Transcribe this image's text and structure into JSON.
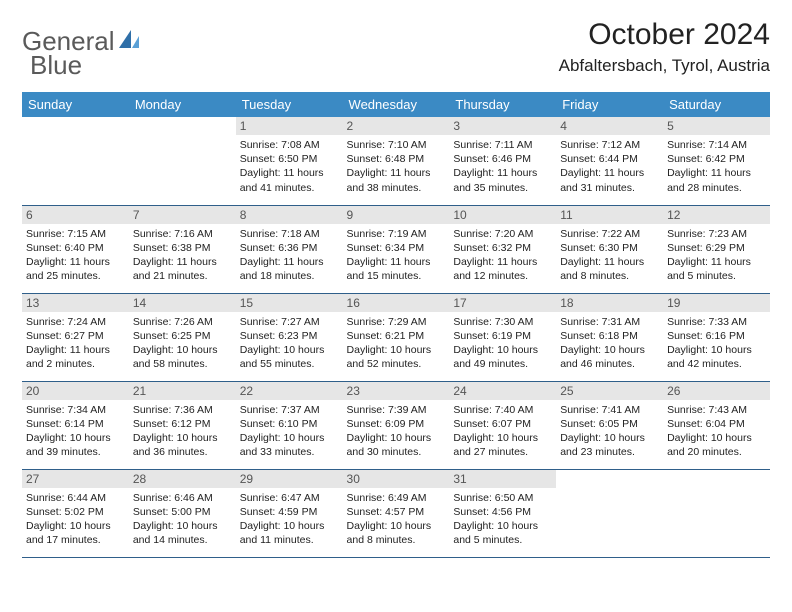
{
  "brand": {
    "general": "General",
    "blue": "Blue"
  },
  "title": "October 2024",
  "location": "Abfaltersbach, Tyrol, Austria",
  "colors": {
    "header_bg": "#3b8ac4",
    "header_text": "#ffffff",
    "daynum_bg": "#e6e6e6",
    "daynum_text": "#555555",
    "rule": "#2f5f8a",
    "body_text": "#222222",
    "logo_gray": "#5a5a5a",
    "logo_blue": "#3a7ab8"
  },
  "typography": {
    "title_fontsize": 30,
    "location_fontsize": 17,
    "dayhead_fontsize": 13,
    "daynum_fontsize": 12,
    "body_fontsize": 10.5
  },
  "weekdays": [
    "Sunday",
    "Monday",
    "Tuesday",
    "Wednesday",
    "Thursday",
    "Friday",
    "Saturday"
  ],
  "weeks": [
    [
      {
        "n": "",
        "sr": "",
        "ss": "",
        "dl1": "",
        "dl2": ""
      },
      {
        "n": "",
        "sr": "",
        "ss": "",
        "dl1": "",
        "dl2": ""
      },
      {
        "n": "1",
        "sr": "Sunrise: 7:08 AM",
        "ss": "Sunset: 6:50 PM",
        "dl1": "Daylight: 11 hours",
        "dl2": "and 41 minutes."
      },
      {
        "n": "2",
        "sr": "Sunrise: 7:10 AM",
        "ss": "Sunset: 6:48 PM",
        "dl1": "Daylight: 11 hours",
        "dl2": "and 38 minutes."
      },
      {
        "n": "3",
        "sr": "Sunrise: 7:11 AM",
        "ss": "Sunset: 6:46 PM",
        "dl1": "Daylight: 11 hours",
        "dl2": "and 35 minutes."
      },
      {
        "n": "4",
        "sr": "Sunrise: 7:12 AM",
        "ss": "Sunset: 6:44 PM",
        "dl1": "Daylight: 11 hours",
        "dl2": "and 31 minutes."
      },
      {
        "n": "5",
        "sr": "Sunrise: 7:14 AM",
        "ss": "Sunset: 6:42 PM",
        "dl1": "Daylight: 11 hours",
        "dl2": "and 28 minutes."
      }
    ],
    [
      {
        "n": "6",
        "sr": "Sunrise: 7:15 AM",
        "ss": "Sunset: 6:40 PM",
        "dl1": "Daylight: 11 hours",
        "dl2": "and 25 minutes."
      },
      {
        "n": "7",
        "sr": "Sunrise: 7:16 AM",
        "ss": "Sunset: 6:38 PM",
        "dl1": "Daylight: 11 hours",
        "dl2": "and 21 minutes."
      },
      {
        "n": "8",
        "sr": "Sunrise: 7:18 AM",
        "ss": "Sunset: 6:36 PM",
        "dl1": "Daylight: 11 hours",
        "dl2": "and 18 minutes."
      },
      {
        "n": "9",
        "sr": "Sunrise: 7:19 AM",
        "ss": "Sunset: 6:34 PM",
        "dl1": "Daylight: 11 hours",
        "dl2": "and 15 minutes."
      },
      {
        "n": "10",
        "sr": "Sunrise: 7:20 AM",
        "ss": "Sunset: 6:32 PM",
        "dl1": "Daylight: 11 hours",
        "dl2": "and 12 minutes."
      },
      {
        "n": "11",
        "sr": "Sunrise: 7:22 AM",
        "ss": "Sunset: 6:30 PM",
        "dl1": "Daylight: 11 hours",
        "dl2": "and 8 minutes."
      },
      {
        "n": "12",
        "sr": "Sunrise: 7:23 AM",
        "ss": "Sunset: 6:29 PM",
        "dl1": "Daylight: 11 hours",
        "dl2": "and 5 minutes."
      }
    ],
    [
      {
        "n": "13",
        "sr": "Sunrise: 7:24 AM",
        "ss": "Sunset: 6:27 PM",
        "dl1": "Daylight: 11 hours",
        "dl2": "and 2 minutes."
      },
      {
        "n": "14",
        "sr": "Sunrise: 7:26 AM",
        "ss": "Sunset: 6:25 PM",
        "dl1": "Daylight: 10 hours",
        "dl2": "and 58 minutes."
      },
      {
        "n": "15",
        "sr": "Sunrise: 7:27 AM",
        "ss": "Sunset: 6:23 PM",
        "dl1": "Daylight: 10 hours",
        "dl2": "and 55 minutes."
      },
      {
        "n": "16",
        "sr": "Sunrise: 7:29 AM",
        "ss": "Sunset: 6:21 PM",
        "dl1": "Daylight: 10 hours",
        "dl2": "and 52 minutes."
      },
      {
        "n": "17",
        "sr": "Sunrise: 7:30 AM",
        "ss": "Sunset: 6:19 PM",
        "dl1": "Daylight: 10 hours",
        "dl2": "and 49 minutes."
      },
      {
        "n": "18",
        "sr": "Sunrise: 7:31 AM",
        "ss": "Sunset: 6:18 PM",
        "dl1": "Daylight: 10 hours",
        "dl2": "and 46 minutes."
      },
      {
        "n": "19",
        "sr": "Sunrise: 7:33 AM",
        "ss": "Sunset: 6:16 PM",
        "dl1": "Daylight: 10 hours",
        "dl2": "and 42 minutes."
      }
    ],
    [
      {
        "n": "20",
        "sr": "Sunrise: 7:34 AM",
        "ss": "Sunset: 6:14 PM",
        "dl1": "Daylight: 10 hours",
        "dl2": "and 39 minutes."
      },
      {
        "n": "21",
        "sr": "Sunrise: 7:36 AM",
        "ss": "Sunset: 6:12 PM",
        "dl1": "Daylight: 10 hours",
        "dl2": "and 36 minutes."
      },
      {
        "n": "22",
        "sr": "Sunrise: 7:37 AM",
        "ss": "Sunset: 6:10 PM",
        "dl1": "Daylight: 10 hours",
        "dl2": "and 33 minutes."
      },
      {
        "n": "23",
        "sr": "Sunrise: 7:39 AM",
        "ss": "Sunset: 6:09 PM",
        "dl1": "Daylight: 10 hours",
        "dl2": "and 30 minutes."
      },
      {
        "n": "24",
        "sr": "Sunrise: 7:40 AM",
        "ss": "Sunset: 6:07 PM",
        "dl1": "Daylight: 10 hours",
        "dl2": "and 27 minutes."
      },
      {
        "n": "25",
        "sr": "Sunrise: 7:41 AM",
        "ss": "Sunset: 6:05 PM",
        "dl1": "Daylight: 10 hours",
        "dl2": "and 23 minutes."
      },
      {
        "n": "26",
        "sr": "Sunrise: 7:43 AM",
        "ss": "Sunset: 6:04 PM",
        "dl1": "Daylight: 10 hours",
        "dl2": "and 20 minutes."
      }
    ],
    [
      {
        "n": "27",
        "sr": "Sunrise: 6:44 AM",
        "ss": "Sunset: 5:02 PM",
        "dl1": "Daylight: 10 hours",
        "dl2": "and 17 minutes."
      },
      {
        "n": "28",
        "sr": "Sunrise: 6:46 AM",
        "ss": "Sunset: 5:00 PM",
        "dl1": "Daylight: 10 hours",
        "dl2": "and 14 minutes."
      },
      {
        "n": "29",
        "sr": "Sunrise: 6:47 AM",
        "ss": "Sunset: 4:59 PM",
        "dl1": "Daylight: 10 hours",
        "dl2": "and 11 minutes."
      },
      {
        "n": "30",
        "sr": "Sunrise: 6:49 AM",
        "ss": "Sunset: 4:57 PM",
        "dl1": "Daylight: 10 hours",
        "dl2": "and 8 minutes."
      },
      {
        "n": "31",
        "sr": "Sunrise: 6:50 AM",
        "ss": "Sunset: 4:56 PM",
        "dl1": "Daylight: 10 hours",
        "dl2": "and 5 minutes."
      },
      {
        "n": "",
        "sr": "",
        "ss": "",
        "dl1": "",
        "dl2": ""
      },
      {
        "n": "",
        "sr": "",
        "ss": "",
        "dl1": "",
        "dl2": ""
      }
    ]
  ]
}
